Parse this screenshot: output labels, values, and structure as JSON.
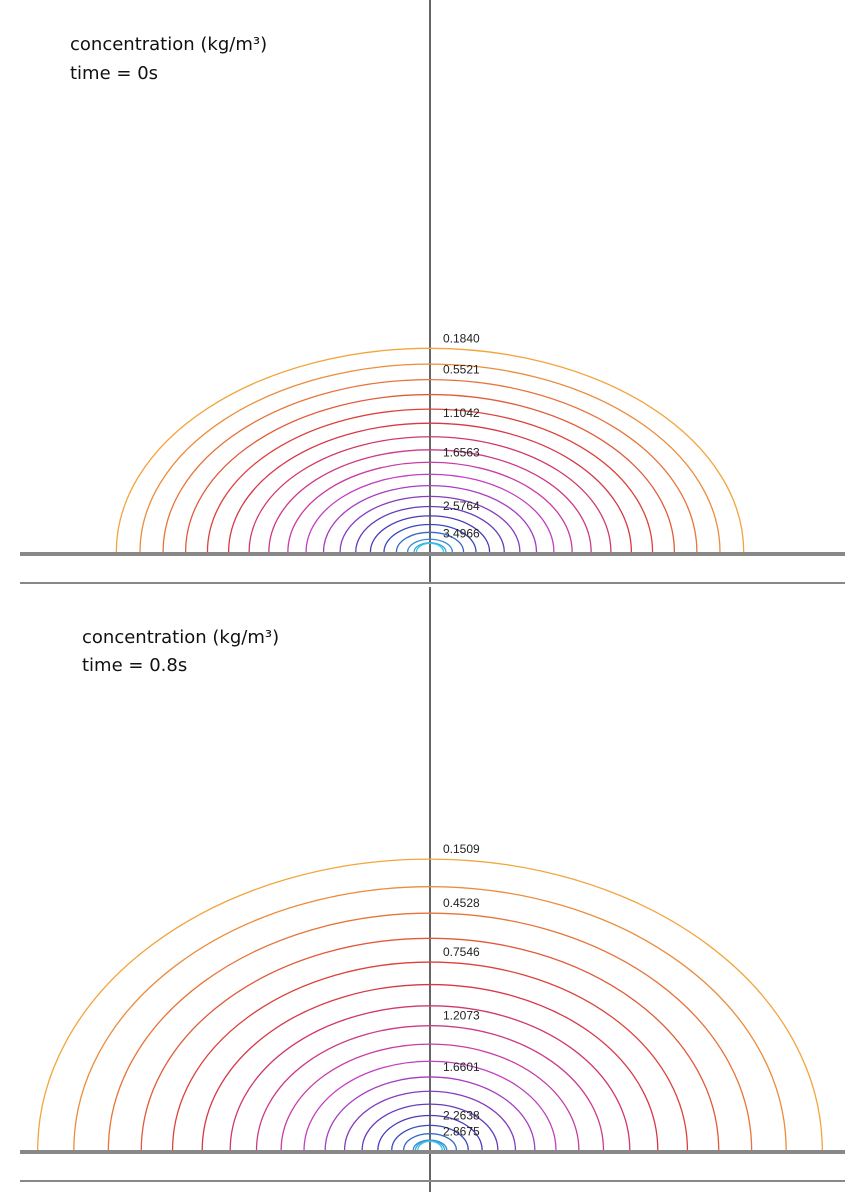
{
  "chart_data": [
    {
      "type": "contour",
      "title": "concentration (kg/m³)",
      "subtitle": "time = 0s",
      "values": [
        0.184,
        0.368,
        0.5521,
        0.7361,
        0.9201,
        1.1042,
        1.2882,
        1.4722,
        1.6563,
        1.8403,
        2.0243,
        2.2084,
        2.3924,
        2.5764,
        2.7605,
        2.9445,
        3.1285,
        3.3126,
        3.4966
      ],
      "value_labels": [
        "0.1840",
        null,
        "0.5521",
        null,
        null,
        "1.1042",
        null,
        null,
        "1.6563",
        null,
        null,
        null,
        null,
        "2.5764",
        null,
        null,
        null,
        null,
        "3.4966"
      ],
      "colormap": [
        "#f2a53c",
        "#d9363a",
        "#c23fc2",
        "#3a3ab8",
        "#35c8e8"
      ]
    },
    {
      "type": "contour",
      "title": "concentration (kg/m³)",
      "subtitle": "time = 0.8s",
      "values": [
        0.1509,
        0.3018,
        0.4528,
        0.6037,
        0.7546,
        0.9055,
        1.0564,
        1.2073,
        1.3583,
        1.5092,
        1.6601,
        1.811,
        1.9619,
        2.1128,
        2.2638,
        2.4147,
        2.5656,
        2.7165,
        2.8675
      ],
      "value_labels": [
        "0.1509",
        null,
        "0.4528",
        null,
        "0.7546",
        null,
        null,
        "1.2073",
        null,
        null,
        "1.6601",
        null,
        null,
        null,
        "2.2638",
        null,
        null,
        null,
        "2.8675"
      ],
      "colormap": [
        "#f2a53c",
        "#d9363a",
        "#c23fc2",
        "#3a3ab8",
        "#35c8e8"
      ]
    }
  ]
}
